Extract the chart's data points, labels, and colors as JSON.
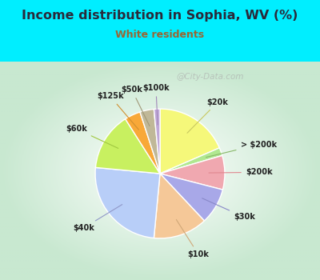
{
  "title": "Income distribution in Sophia, WV (%)",
  "subtitle": "White residents",
  "title_color": "#2a2a3a",
  "subtitle_color": "#996633",
  "background_outer": "#00eeff",
  "watermark": "@City-Data.com",
  "labels": [
    "$20k",
    "> $200k",
    "$200k",
    "$30k",
    "$10k",
    "$40k",
    "$60k",
    "$125k",
    "$50k",
    "$100k"
  ],
  "values": [
    18.5,
    2.0,
    8.5,
    9.0,
    13.5,
    25.0,
    14.5,
    4.0,
    3.5,
    1.5
  ],
  "colors": [
    "#f5f87a",
    "#b0e890",
    "#f0a8b0",
    "#a8a8e8",
    "#f5c898",
    "#b8cef8",
    "#c8f060",
    "#f8a838",
    "#c0b898",
    "#c0a8d8"
  ],
  "label_line_colors": [
    "#c8c860",
    "#88b868",
    "#e08890",
    "#8888c8",
    "#d0a878",
    "#9098c8",
    "#a0c840",
    "#d09030",
    "#a09878",
    "#a088b8"
  ]
}
